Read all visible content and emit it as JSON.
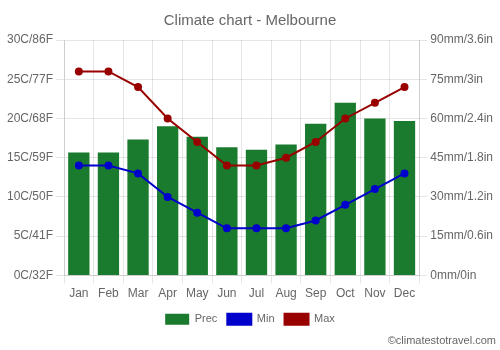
{
  "chart_data": {
    "type": "bar",
    "title": "Climate chart - Melbourne",
    "categories": [
      "Jan",
      "Feb",
      "Mar",
      "Apr",
      "May",
      "Jun",
      "Jul",
      "Aug",
      "Sep",
      "Oct",
      "Nov",
      "Dec"
    ],
    "series": [
      {
        "name": "Prec",
        "type": "bar",
        "color": "#1a7a2e",
        "axis": "y2",
        "values": [
          47,
          47,
          52,
          57,
          53,
          49,
          48,
          50,
          58,
          66,
          60,
          59
        ]
      },
      {
        "name": "Min",
        "type": "line",
        "color": "#0000cc",
        "marker": "circle",
        "values": [
          14,
          14,
          13,
          10,
          8,
          6,
          6,
          6,
          7,
          9,
          11,
          13
        ]
      },
      {
        "name": "Max",
        "type": "line",
        "color": "#990000",
        "marker": "circle",
        "values": [
          26,
          26,
          24,
          20,
          17,
          14,
          14,
          15,
          17,
          20,
          22,
          24
        ]
      }
    ],
    "ylim": [
      0,
      30
    ],
    "yticks": [
      {
        "value": 0,
        "label": "0C/32F"
      },
      {
        "value": 5,
        "label": "5C/41F"
      },
      {
        "value": 10,
        "label": "10C/50F"
      },
      {
        "value": 15,
        "label": "15C/59F"
      },
      {
        "value": 20,
        "label": "20C/68F"
      },
      {
        "value": 25,
        "label": "25C/77F"
      },
      {
        "value": 30,
        "label": "30C/86F"
      }
    ],
    "y2lim": [
      0,
      90
    ],
    "y2ticks": [
      {
        "value": 0,
        "label": "0mm/0in"
      },
      {
        "value": 15,
        "label": "15mm/0.6in"
      },
      {
        "value": 30,
        "label": "30mm/1.2in"
      },
      {
        "value": 45,
        "label": "45mm/1.8in"
      },
      {
        "value": 60,
        "label": "60mm/2.4in"
      },
      {
        "value": 75,
        "label": "75mm/3in"
      },
      {
        "value": 90,
        "label": "90mm/3.6in"
      }
    ],
    "grid": true,
    "legend": "bottom",
    "annotations": [
      "©climatestotravel.com"
    ]
  }
}
